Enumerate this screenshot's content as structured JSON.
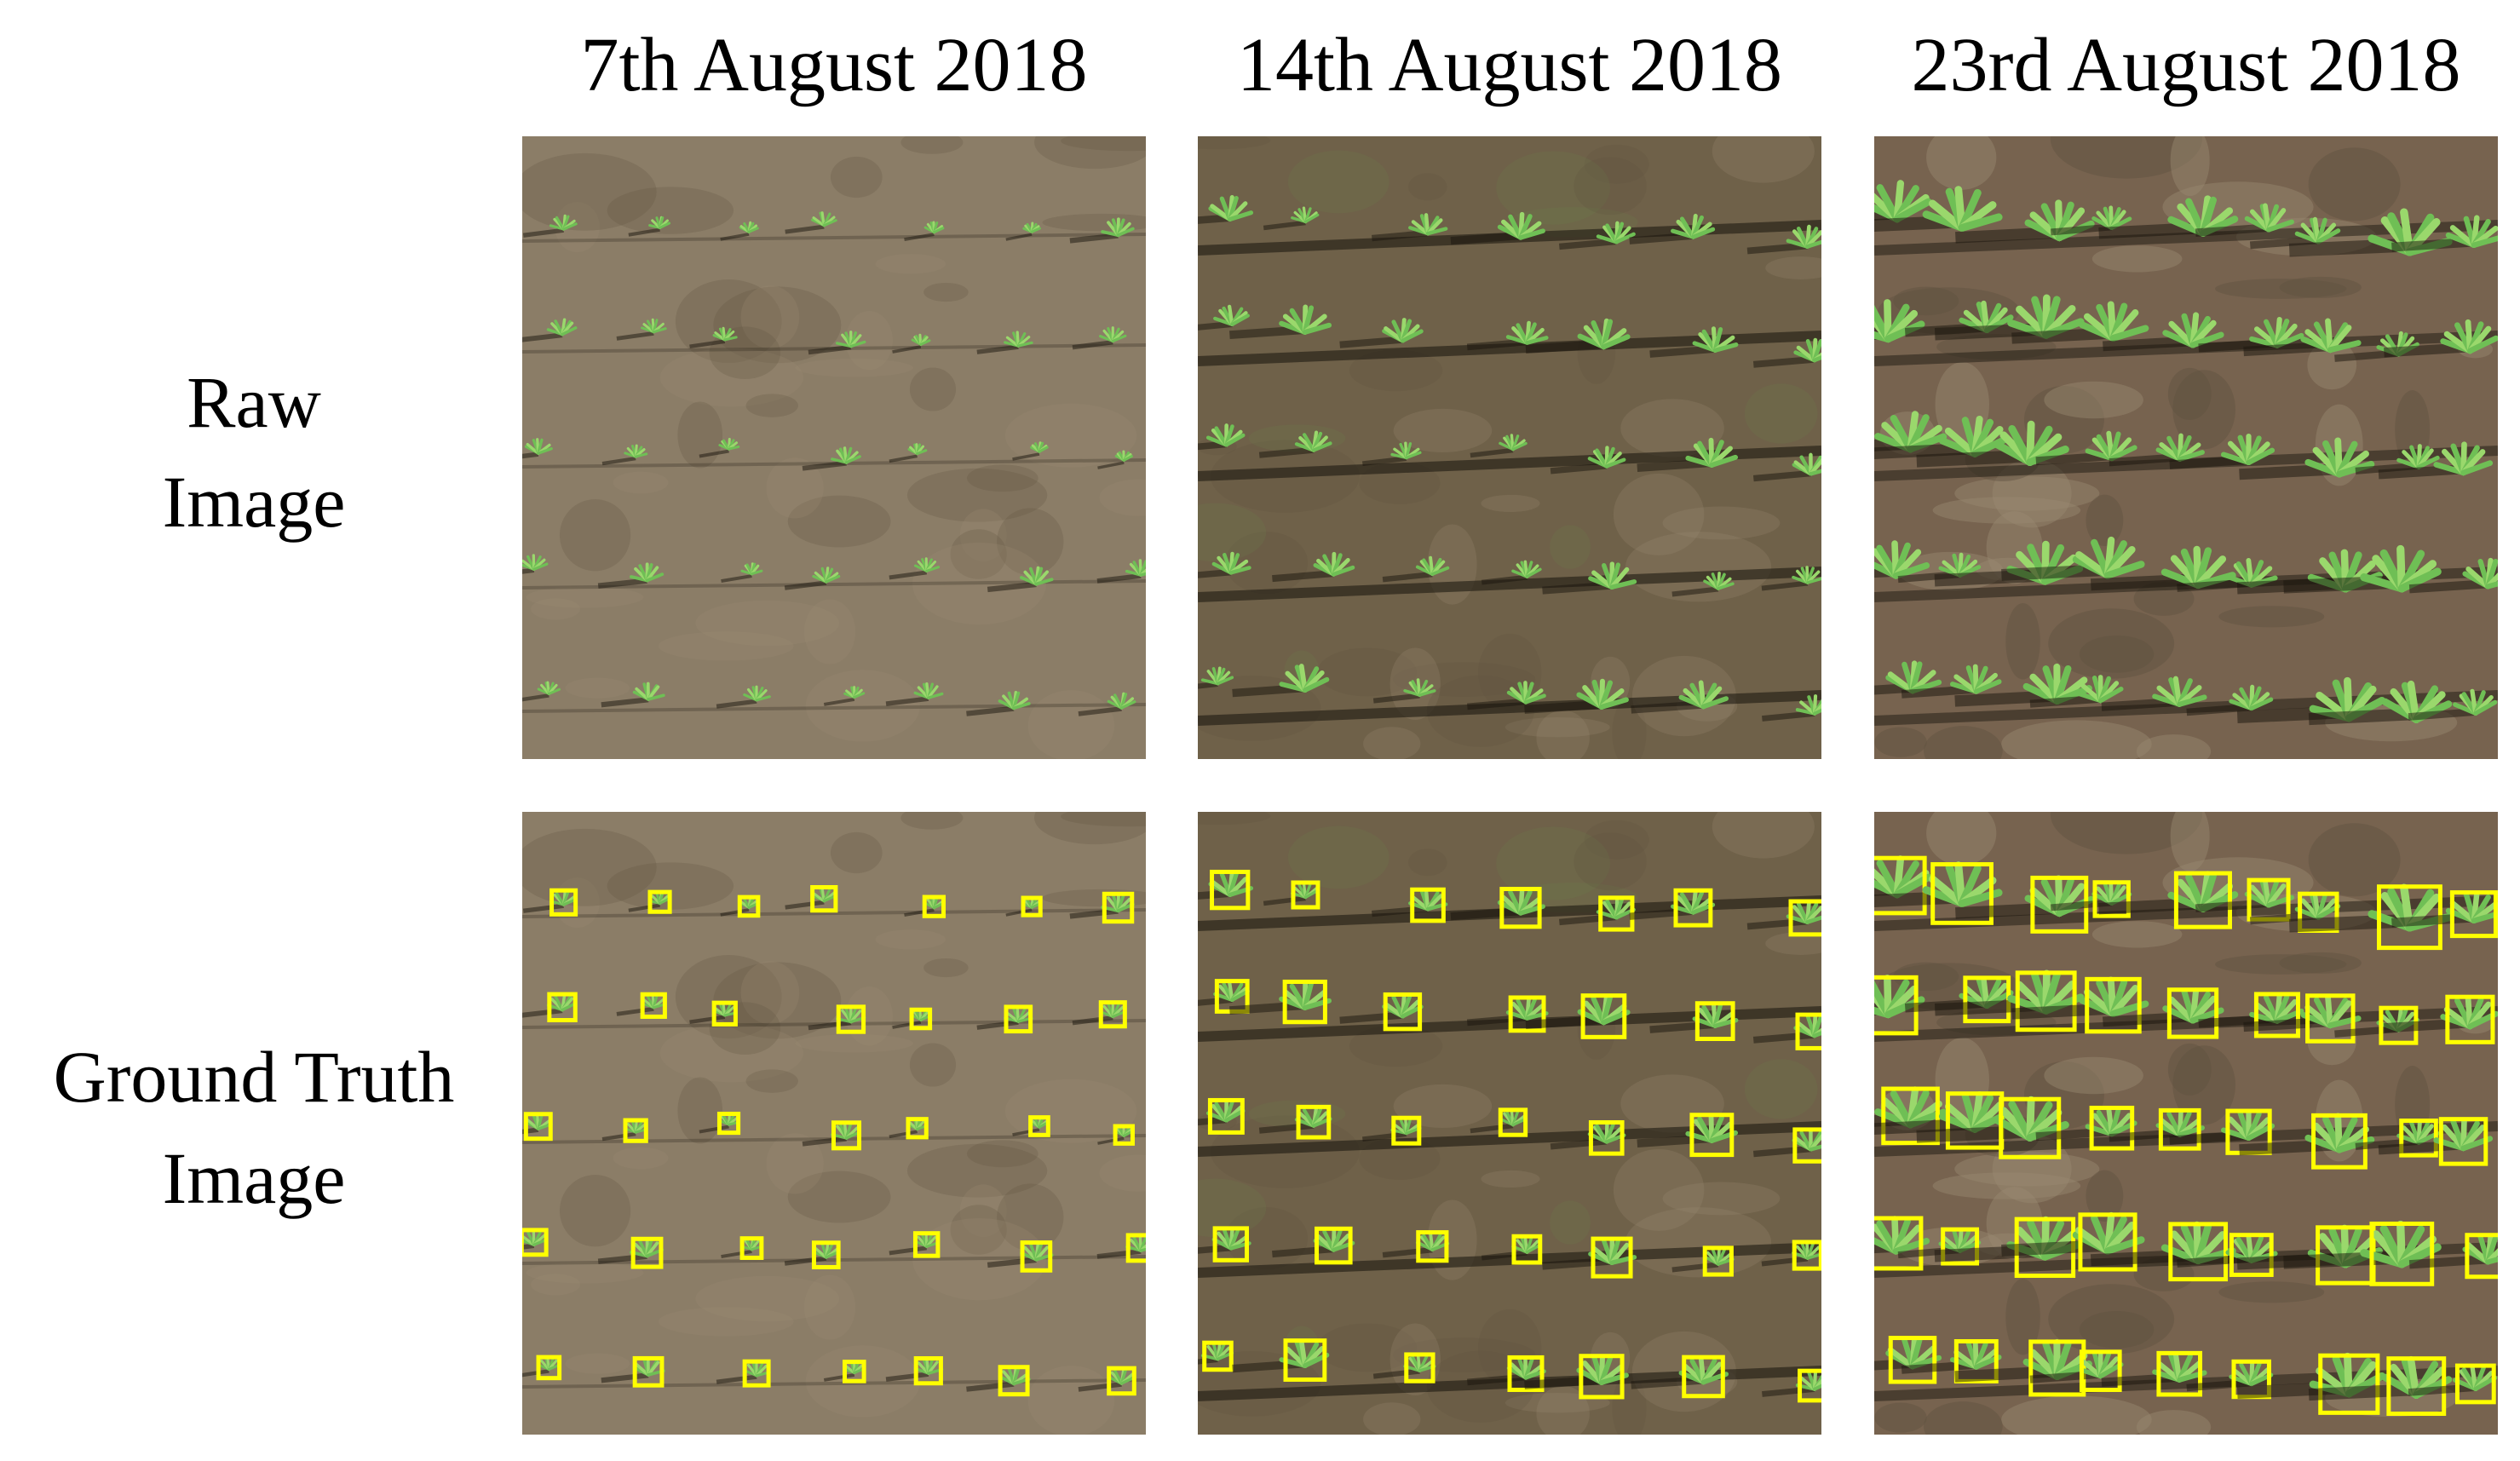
{
  "column_titles": [
    "7th August 2018",
    "14th August 2018",
    "23rd August 2018"
  ],
  "row_labels": [
    [
      "Raw",
      "Image"
    ],
    [
      "Ground Truth",
      "Image"
    ]
  ]
}
